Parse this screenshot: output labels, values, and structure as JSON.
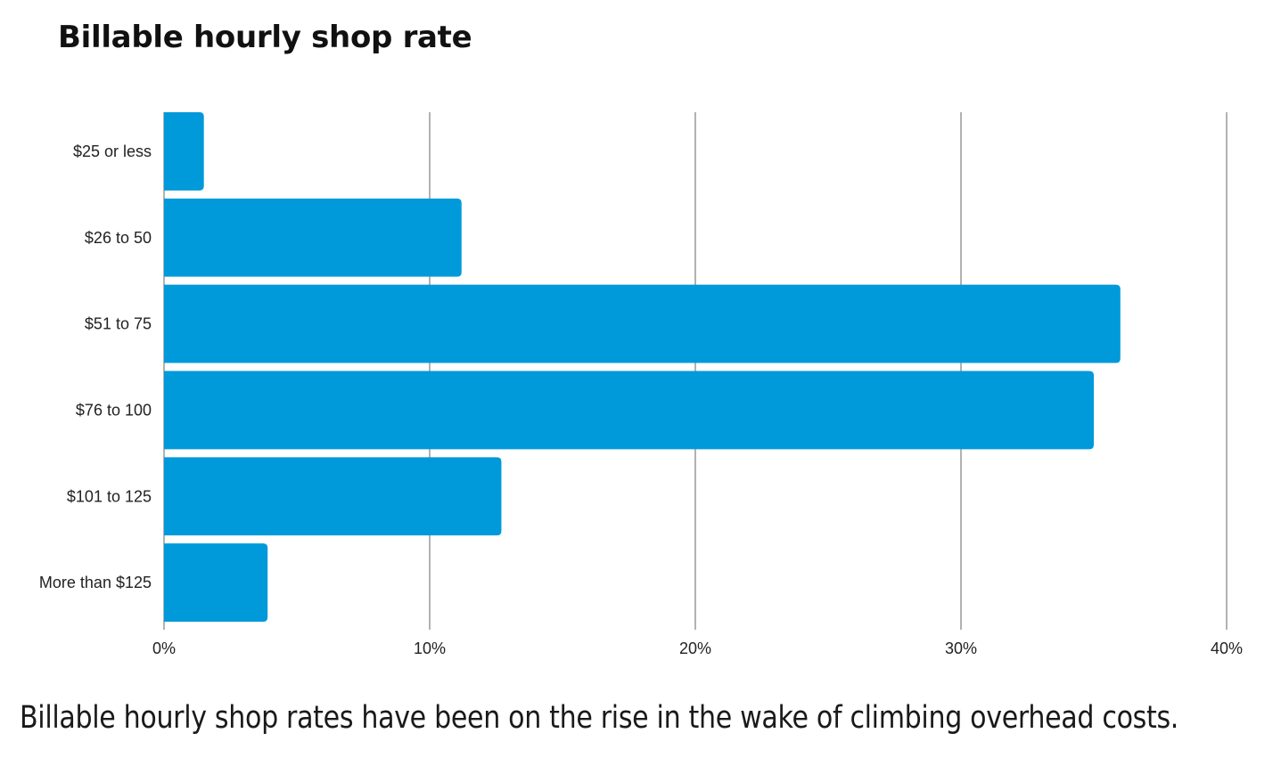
{
  "chart_data": {
    "type": "bar",
    "orientation": "horizontal",
    "title": "Billable hourly shop rate",
    "categories": [
      "$25 or less",
      "$26 to 50",
      "$51 to 75",
      "$76 to 100",
      "$101 to 125",
      "More than $125"
    ],
    "values": [
      1.5,
      11.2,
      36.0,
      35.0,
      12.7,
      3.9
    ],
    "unit": "%",
    "xlim": [
      0,
      40
    ],
    "xticks": [
      0,
      10,
      20,
      30,
      40
    ],
    "xtick_labels": [
      "0%",
      "10%",
      "20%",
      "30%",
      "40%"
    ],
    "grid": "vertical",
    "legend": "none",
    "bar_color": "#0099da",
    "grid_color": "#666666",
    "caption": "Billable hourly shop rates have been on the rise in the wake of climbing overhead costs."
  }
}
